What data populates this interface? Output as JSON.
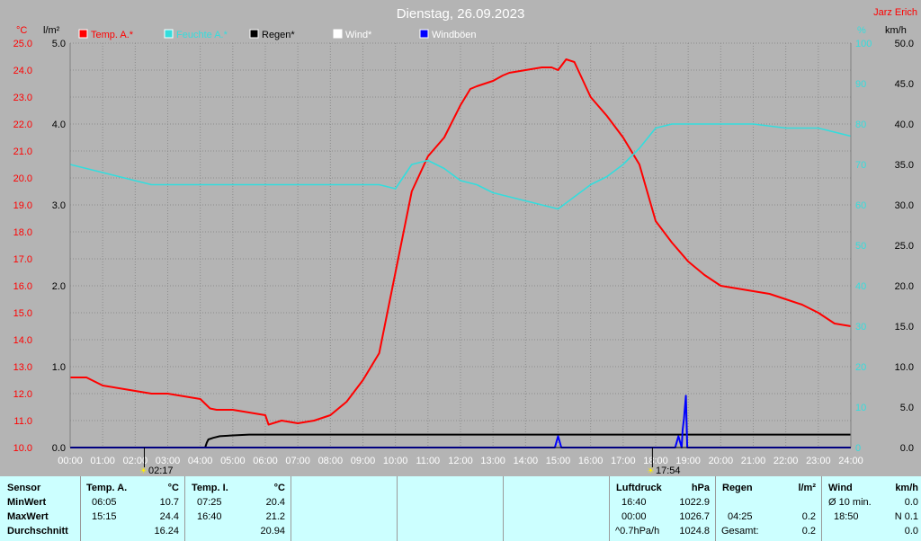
{
  "title": "Dienstag, 26.09.2023",
  "brand": "Jarz Erich",
  "axis_units": {
    "temp": "°C",
    "rain": "l/m²",
    "humidity": "%",
    "wind": "km/h"
  },
  "legend": [
    {
      "label": "Temp. A.*",
      "color": "#ff0000"
    },
    {
      "label": "Feuchte A.*",
      "color": "#33dddd"
    },
    {
      "label": "Regen*",
      "color": "#000000"
    },
    {
      "label": "Wind*",
      "color": "#ffffff"
    },
    {
      "label": "Windböen",
      "color": "#0000ff"
    }
  ],
  "sun_events": {
    "sunrise": "02:17",
    "sunset": "17:54"
  },
  "chart_data": {
    "type": "line",
    "x_label_ticks": [
      "00:00",
      "01:00",
      "02:00",
      "03:00",
      "04:00",
      "05:00",
      "06:00",
      "07:00",
      "08:00",
      "09:00",
      "10:00",
      "11:00",
      "12:00",
      "13:00",
      "14:00",
      "15:00",
      "16:00",
      "17:00",
      "18:00",
      "19:00",
      "20:00",
      "21:00",
      "22:00",
      "23:00",
      "24:00"
    ],
    "xlim": [
      0,
      24
    ],
    "axes": {
      "temp": {
        "range": [
          10,
          25
        ],
        "ticks": [
          "10.0",
          "11.0",
          "12.0",
          "13.0",
          "14.0",
          "15.0",
          "16.0",
          "17.0",
          "18.0",
          "19.0",
          "20.0",
          "21.0",
          "22.0",
          "23.0",
          "24.0",
          "25.0"
        ]
      },
      "rain": {
        "range": [
          0,
          5
        ],
        "ticks": [
          "0.0",
          "1.0",
          "2.0",
          "3.0",
          "4.0",
          "5.0"
        ]
      },
      "humidity": {
        "range": [
          0,
          100
        ],
        "ticks": [
          "0",
          "10",
          "20",
          "30",
          "40",
          "50",
          "60",
          "70",
          "80",
          "90",
          "100"
        ]
      },
      "wind": {
        "range": [
          0,
          50
        ],
        "ticks": [
          "0.0",
          "5.0",
          "10.0",
          "15.0",
          "20.0",
          "25.0",
          "30.0",
          "35.0",
          "40.0",
          "45.0",
          "50.0"
        ]
      }
    },
    "grid": true,
    "series": [
      {
        "name": "Temp. A.*",
        "axis": "temp",
        "color": "#ff0000",
        "x": [
          0,
          0.5,
          1,
          1.5,
          2,
          2.5,
          3,
          3.5,
          4,
          4.3,
          4.5,
          5,
          5.5,
          6,
          6.1,
          6.5,
          7,
          7.5,
          8,
          8.5,
          9,
          9.5,
          10,
          10.5,
          11,
          11.5,
          12,
          12.3,
          12.5,
          13,
          13.3,
          13.5,
          14,
          14.5,
          14.8,
          15,
          15.25,
          15.5,
          16,
          16.5,
          17,
          17.5,
          18,
          18.5,
          19,
          19.5,
          20,
          20.5,
          21,
          21.5,
          22,
          22.5,
          23,
          23.5,
          24
        ],
        "y": [
          12.6,
          12.6,
          12.3,
          12.2,
          12.1,
          12.0,
          12.0,
          11.9,
          11.8,
          11.45,
          11.4,
          11.4,
          11.3,
          11.2,
          10.85,
          11.0,
          10.9,
          11.0,
          11.2,
          11.7,
          12.5,
          13.5,
          16.5,
          19.5,
          20.8,
          21.5,
          22.7,
          23.3,
          23.4,
          23.6,
          23.8,
          23.9,
          24.0,
          24.1,
          24.1,
          24.0,
          24.4,
          24.3,
          23.0,
          22.3,
          21.5,
          20.5,
          18.4,
          17.6,
          16.9,
          16.4,
          16.0,
          15.9,
          15.8,
          15.7,
          15.5,
          15.3,
          15.0,
          14.6,
          14.5
        ]
      },
      {
        "name": "Feuchte A.*",
        "axis": "humidity",
        "color": "#33dddd",
        "x": [
          0,
          0.5,
          1,
          1.5,
          2,
          2.5,
          3,
          4,
          5,
          6,
          7,
          8,
          9,
          9.5,
          10,
          10.5,
          11,
          11.5,
          12,
          12.5,
          13,
          13.5,
          14,
          14.5,
          15,
          15.5,
          16,
          16.5,
          17,
          17.5,
          18,
          18.5,
          19,
          19.5,
          20,
          21,
          22,
          23,
          23.5,
          24
        ],
        "y": [
          70,
          69,
          68,
          67,
          66,
          65,
          65,
          65,
          65,
          65,
          65,
          65,
          65,
          65,
          64,
          70,
          71,
          69,
          66,
          65,
          63,
          62,
          61,
          60,
          59,
          62,
          65,
          67,
          70,
          74,
          79,
          80,
          80,
          80,
          80,
          80,
          79,
          79,
          78,
          77
        ]
      },
      {
        "name": "Regen*",
        "axis": "rain",
        "color": "#000000",
        "x": [
          0,
          4.15,
          4.2,
          4.25,
          4.4,
          4.6,
          5,
          5.5,
          24
        ],
        "y": [
          0,
          0,
          0.06,
          0.1,
          0.12,
          0.14,
          0.15,
          0.16,
          0.16
        ]
      },
      {
        "name": "Windböen",
        "axis": "wind",
        "color": "#0000ff",
        "x": [
          0,
          14.9,
          15.0,
          15.1,
          18.6,
          18.7,
          18.8,
          18.83,
          18.87,
          18.93,
          18.97,
          24
        ],
        "y": [
          0,
          0,
          1.4,
          0,
          0,
          1.4,
          0,
          2.2,
          3.6,
          6.4,
          0,
          0
        ]
      }
    ]
  },
  "stats": {
    "sensor": {
      "h_sensor": "Sensor",
      "min": "MinWert",
      "max": "MaxWert",
      "avg": "Durchschnitt"
    },
    "temp_a": {
      "h": "Temp. A.",
      "unit": "°C",
      "min_time": "06:05",
      "min_val": "10.7",
      "max_time": "15:15",
      "max_val": "24.4",
      "avg": "16.24"
    },
    "temp_i": {
      "h": "Temp. I.",
      "unit": "°C",
      "min_time": "07:25",
      "min_val": "20.4",
      "max_time": "16:40",
      "max_val": "21.2",
      "avg": "20.94"
    },
    "pressure": {
      "h": "Luftdruck",
      "unit": "hPa",
      "r1_time": "16:40",
      "r1_val": "1022.9",
      "r2_time": "00:00",
      "r2_val": "1026.7",
      "r3_time": "^0.7hPa/h",
      "r3_val": "1024.8"
    },
    "rain": {
      "h": "Regen",
      "unit": "l/m²",
      "r2_time": "04:25",
      "r2_val": "0.2",
      "r3_label": "Gesamt:",
      "r3_val": "0.2"
    },
    "wind": {
      "h": "Wind",
      "unit": "km/h",
      "r1_label": "Ø 10 min.",
      "r1_val": "0.0",
      "r2_time": "18:50",
      "r2_val": "N 0.1",
      "r3_val": "0.0"
    }
  }
}
